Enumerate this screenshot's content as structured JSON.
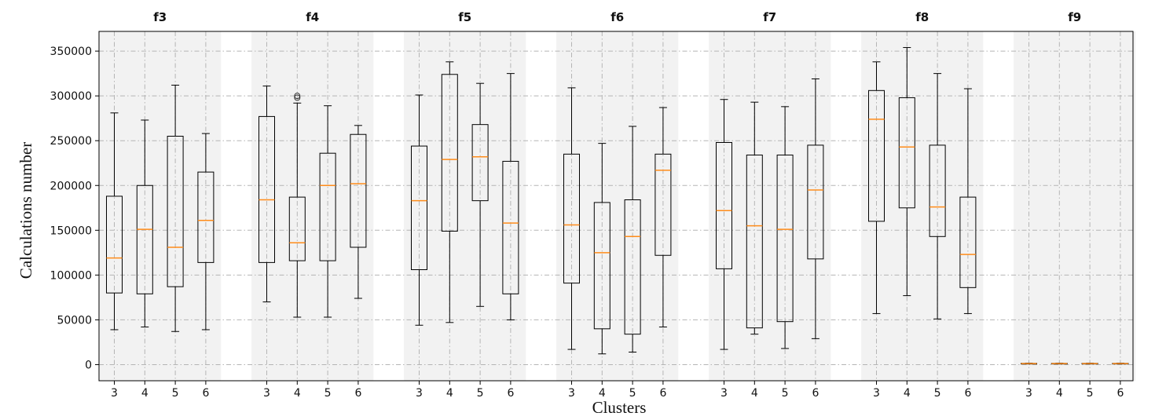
{
  "chart_data": {
    "type": "boxplot",
    "xlabel": "Clusters",
    "ylabel": "Calculations number",
    "ylim": [
      -18000,
      372000
    ],
    "yticks": [
      0,
      50000,
      100000,
      150000,
      200000,
      250000,
      300000,
      350000
    ],
    "ytick_labels": [
      "0",
      "50000",
      "100000",
      "150000",
      "200000",
      "250000",
      "300000",
      "350000"
    ],
    "grid": true,
    "colors": {
      "box": "#000000",
      "median": "#ff8c1a",
      "panel_background": "#f2f2f2",
      "grid": "#b5b5b5"
    },
    "groups": [
      {
        "title": "f3",
        "boxes": [
          {
            "label": "3",
            "whislo": 39000,
            "q1": 80000,
            "med": 119000,
            "q3": 188000,
            "whishi": 281000,
            "fliers": []
          },
          {
            "label": "4",
            "whislo": 42000,
            "q1": 79000,
            "med": 151000,
            "q3": 200000,
            "whishi": 273000,
            "fliers": []
          },
          {
            "label": "5",
            "whislo": 37000,
            "q1": 87000,
            "med": 131000,
            "q3": 255000,
            "whishi": 312000,
            "fliers": []
          },
          {
            "label": "6",
            "whislo": 39000,
            "q1": 114000,
            "med": 161000,
            "q3": 215000,
            "whishi": 258000,
            "fliers": []
          }
        ]
      },
      {
        "title": "f4",
        "boxes": [
          {
            "label": "3",
            "whislo": 70000,
            "q1": 114000,
            "med": 184000,
            "q3": 277000,
            "whishi": 311000,
            "fliers": []
          },
          {
            "label": "4",
            "whislo": 53000,
            "q1": 116000,
            "med": 136000,
            "q3": 187000,
            "whishi": 292000,
            "fliers": [
              298000,
              300000
            ]
          },
          {
            "label": "5",
            "whislo": 53000,
            "q1": 116000,
            "med": 200000,
            "q3": 236000,
            "whishi": 289000,
            "fliers": []
          },
          {
            "label": "6",
            "whislo": 74000,
            "q1": 131000,
            "med": 202000,
            "q3": 257000,
            "whishi": 267000,
            "fliers": []
          }
        ]
      },
      {
        "title": "f5",
        "boxes": [
          {
            "label": "3",
            "whislo": 44000,
            "q1": 106000,
            "med": 183000,
            "q3": 244000,
            "whishi": 301000,
            "fliers": []
          },
          {
            "label": "4",
            "whislo": 47000,
            "q1": 149000,
            "med": 229000,
            "q3": 324000,
            "whishi": 338000,
            "fliers": []
          },
          {
            "label": "5",
            "whislo": 65000,
            "q1": 183000,
            "med": 232000,
            "q3": 268000,
            "whishi": 314000,
            "fliers": []
          },
          {
            "label": "6",
            "whislo": 50000,
            "q1": 79000,
            "med": 158000,
            "q3": 227000,
            "whishi": 325000,
            "fliers": []
          }
        ]
      },
      {
        "title": "f6",
        "boxes": [
          {
            "label": "3",
            "whislo": 17000,
            "q1": 91000,
            "med": 156000,
            "q3": 235000,
            "whishi": 309000,
            "fliers": []
          },
          {
            "label": "4",
            "whislo": 12000,
            "q1": 40000,
            "med": 125000,
            "q3": 181000,
            "whishi": 247000,
            "fliers": []
          },
          {
            "label": "5",
            "whislo": 14000,
            "q1": 34000,
            "med": 143000,
            "q3": 184000,
            "whishi": 266000,
            "fliers": []
          },
          {
            "label": "6",
            "whislo": 42000,
            "q1": 122000,
            "med": 217000,
            "q3": 235000,
            "whishi": 287000,
            "fliers": []
          }
        ]
      },
      {
        "title": "f7",
        "boxes": [
          {
            "label": "3",
            "whislo": 17000,
            "q1": 107000,
            "med": 172000,
            "q3": 248000,
            "whishi": 296000,
            "fliers": []
          },
          {
            "label": "4",
            "whislo": 34000,
            "q1": 41000,
            "med": 155000,
            "q3": 234000,
            "whishi": 293000,
            "fliers": []
          },
          {
            "label": "5",
            "whislo": 18000,
            "q1": 48000,
            "med": 151000,
            "q3": 234000,
            "whishi": 288000,
            "fliers": []
          },
          {
            "label": "6",
            "whislo": 29000,
            "q1": 118000,
            "med": 195000,
            "q3": 245000,
            "whishi": 319000,
            "fliers": []
          }
        ]
      },
      {
        "title": "f8",
        "boxes": [
          {
            "label": "3",
            "whislo": 57000,
            "q1": 160000,
            "med": 274000,
            "q3": 306000,
            "whishi": 338000,
            "fliers": []
          },
          {
            "label": "4",
            "whislo": 77000,
            "q1": 175000,
            "med": 243000,
            "q3": 298000,
            "whishi": 354000,
            "fliers": []
          },
          {
            "label": "5",
            "whislo": 51000,
            "q1": 143000,
            "med": 176000,
            "q3": 245000,
            "whishi": 325000,
            "fliers": []
          },
          {
            "label": "6",
            "whislo": 57000,
            "q1": 86000,
            "med": 123000,
            "q3": 187000,
            "whishi": 308000,
            "fliers": []
          }
        ]
      },
      {
        "title": "f9",
        "boxes": [
          {
            "label": "3",
            "whislo": 800,
            "q1": 1000,
            "med": 1200,
            "q3": 1400,
            "whishi": 1600,
            "fliers": []
          },
          {
            "label": "4",
            "whislo": 800,
            "q1": 1000,
            "med": 1200,
            "q3": 1400,
            "whishi": 1600,
            "fliers": []
          },
          {
            "label": "5",
            "whislo": 800,
            "q1": 1000,
            "med": 1200,
            "q3": 1400,
            "whishi": 1600,
            "fliers": []
          },
          {
            "label": "6",
            "whislo": 800,
            "q1": 1000,
            "med": 1200,
            "q3": 1400,
            "whishi": 1600,
            "fliers": []
          }
        ]
      }
    ]
  }
}
